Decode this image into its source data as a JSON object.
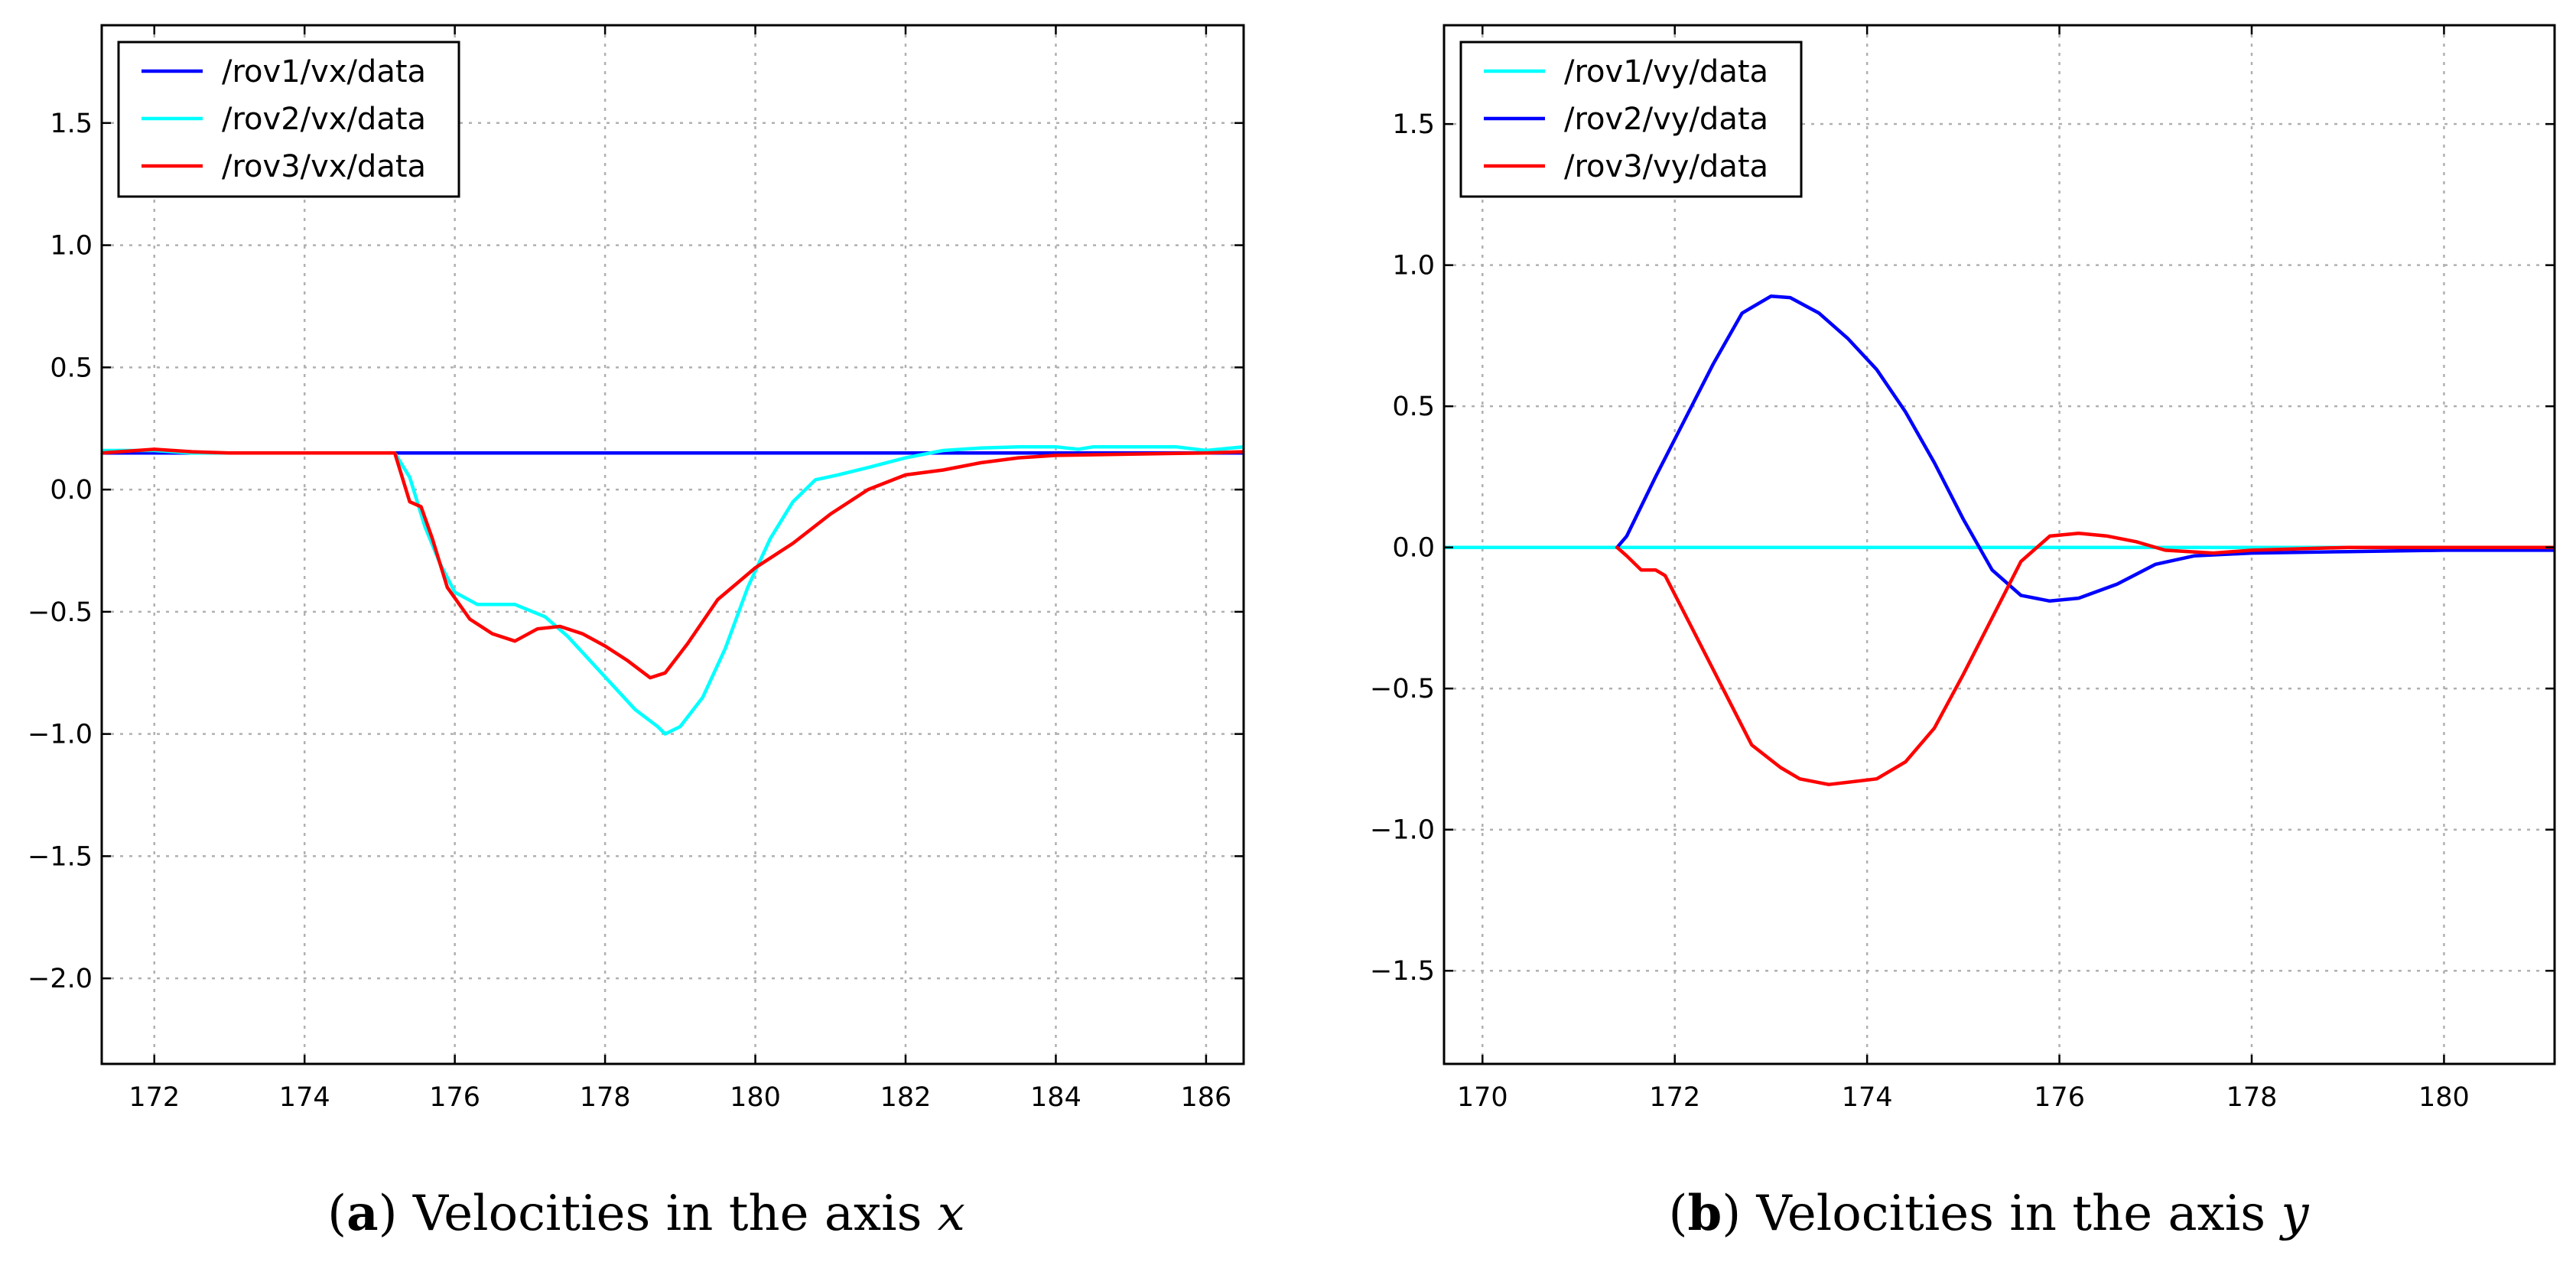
{
  "chart_data": [
    {
      "id": "a",
      "type": "line",
      "caption": {
        "letter": "a",
        "text": "Velocities in the axis",
        "variable": "x"
      },
      "xlim": [
        171.3,
        186.5
      ],
      "ylim": [
        -2.35,
        1.9
      ],
      "xticks": [
        172,
        174,
        176,
        178,
        180,
        182,
        184,
        186
      ],
      "yticks": [
        1.5,
        1.0,
        0.5,
        0.0,
        -0.5,
        -1.0,
        -1.5,
        -2.0
      ],
      "xtick_labels": [
        "172",
        "174",
        "176",
        "178",
        "180",
        "182",
        "184",
        "186"
      ],
      "ytick_labels": [
        "1.5",
        "1.0",
        "0.5",
        "0.0",
        "−0.5",
        "−1.0",
        "−1.5",
        "−2.0"
      ],
      "grid": true,
      "legend_position": "top-left",
      "series": [
        {
          "name": "/rov1/vx/data",
          "color": "#0000ff",
          "points": [
            [
              171.3,
              0.15
            ],
            [
              186.5,
              0.15
            ]
          ]
        },
        {
          "name": "/rov2/vx/data",
          "color": "#00ffff",
          "points": [
            [
              171.3,
              0.16
            ],
            [
              172,
              0.16
            ],
            [
              172.5,
              0.15
            ],
            [
              173,
              0.15
            ],
            [
              174,
              0.15
            ],
            [
              175.2,
              0.15
            ],
            [
              175.4,
              0.05
            ],
            [
              175.6,
              -0.15
            ],
            [
              175.8,
              -0.3
            ],
            [
              176,
              -0.42
            ],
            [
              176.3,
              -0.47
            ],
            [
              176.8,
              -0.47
            ],
            [
              177.2,
              -0.52
            ],
            [
              177.5,
              -0.6
            ],
            [
              177.8,
              -0.7
            ],
            [
              178.1,
              -0.8
            ],
            [
              178.4,
              -0.9
            ],
            [
              178.7,
              -0.97
            ],
            [
              178.8,
              -1.0
            ],
            [
              179.0,
              -0.97
            ],
            [
              179.3,
              -0.85
            ],
            [
              179.6,
              -0.65
            ],
            [
              179.9,
              -0.4
            ],
            [
              180.2,
              -0.2
            ],
            [
              180.5,
              -0.05
            ],
            [
              180.8,
              0.04
            ],
            [
              181.1,
              0.06
            ],
            [
              181.5,
              0.09
            ],
            [
              182.0,
              0.13
            ],
            [
              182.5,
              0.16
            ],
            [
              183.0,
              0.17
            ],
            [
              183.5,
              0.175
            ],
            [
              184.0,
              0.175
            ],
            [
              184.3,
              0.165
            ],
            [
              184.5,
              0.175
            ],
            [
              185.0,
              0.175
            ],
            [
              185.6,
              0.175
            ],
            [
              186.0,
              0.16
            ],
            [
              186.5,
              0.175
            ]
          ]
        },
        {
          "name": "/rov3/vx/data",
          "color": "#ff0000",
          "points": [
            [
              171.3,
              0.15
            ],
            [
              172.0,
              0.165
            ],
            [
              172.5,
              0.155
            ],
            [
              173,
              0.15
            ],
            [
              174,
              0.15
            ],
            [
              175.2,
              0.15
            ],
            [
              175.4,
              -0.05
            ],
            [
              175.55,
              -0.07
            ],
            [
              175.7,
              -0.2
            ],
            [
              175.9,
              -0.4
            ],
            [
              176.2,
              -0.53
            ],
            [
              176.5,
              -0.59
            ],
            [
              176.8,
              -0.62
            ],
            [
              177.1,
              -0.57
            ],
            [
              177.4,
              -0.56
            ],
            [
              177.7,
              -0.59
            ],
            [
              178.0,
              -0.64
            ],
            [
              178.3,
              -0.7
            ],
            [
              178.6,
              -0.77
            ],
            [
              178.8,
              -0.75
            ],
            [
              179.1,
              -0.63
            ],
            [
              179.5,
              -0.45
            ],
            [
              180.0,
              -0.32
            ],
            [
              180.5,
              -0.22
            ],
            [
              181.0,
              -0.1
            ],
            [
              181.5,
              0.0
            ],
            [
              182.0,
              0.06
            ],
            [
              182.5,
              0.08
            ],
            [
              183.0,
              0.11
            ],
            [
              183.5,
              0.13
            ],
            [
              184.0,
              0.14
            ],
            [
              185.0,
              0.145
            ],
            [
              186.0,
              0.15
            ],
            [
              186.5,
              0.155
            ]
          ]
        }
      ]
    },
    {
      "id": "b",
      "type": "line",
      "caption": {
        "letter": "b",
        "text": "Velocities in the axis",
        "variable": "y"
      },
      "xlim": [
        169.6,
        181.15
      ],
      "ylim": [
        -1.83,
        1.85
      ],
      "xticks": [
        170,
        172,
        174,
        176,
        178,
        180
      ],
      "yticks": [
        1.5,
        1.0,
        0.5,
        0.0,
        -0.5,
        -1.0,
        -1.5
      ],
      "xtick_labels": [
        "170",
        "172",
        "174",
        "176",
        "178",
        "180"
      ],
      "ytick_labels": [
        "1.5",
        "1.0",
        "0.5",
        "0.0",
        "−0.5",
        "−1.0",
        "−1.5"
      ],
      "grid": true,
      "legend_position": "top-left",
      "series": [
        {
          "name": "/rov1/vy/data",
          "color": "#00ffff",
          "points": [
            [
              169.6,
              0.0
            ],
            [
              181.15,
              0.0
            ]
          ]
        },
        {
          "name": "/rov2/vy/data",
          "color": "#0000ff",
          "points": [
            [
              171.4,
              0.0
            ],
            [
              171.5,
              0.04
            ],
            [
              171.8,
              0.25
            ],
            [
              172.1,
              0.45
            ],
            [
              172.4,
              0.65
            ],
            [
              172.7,
              0.83
            ],
            [
              173.0,
              0.89
            ],
            [
              173.2,
              0.885
            ],
            [
              173.5,
              0.83
            ],
            [
              173.8,
              0.74
            ],
            [
              174.1,
              0.63
            ],
            [
              174.4,
              0.48
            ],
            [
              174.7,
              0.3
            ],
            [
              175.0,
              0.1
            ],
            [
              175.3,
              -0.08
            ],
            [
              175.6,
              -0.17
            ],
            [
              175.9,
              -0.19
            ],
            [
              176.2,
              -0.18
            ],
            [
              176.6,
              -0.13
            ],
            [
              177.0,
              -0.06
            ],
            [
              177.4,
              -0.03
            ],
            [
              178.0,
              -0.02
            ],
            [
              179.0,
              -0.015
            ],
            [
              180.0,
              -0.01
            ],
            [
              181.15,
              -0.01
            ]
          ]
        },
        {
          "name": "/rov3/vy/data",
          "color": "#ff0000",
          "points": [
            [
              171.4,
              0.0
            ],
            [
              171.5,
              -0.03
            ],
            [
              171.65,
              -0.08
            ],
            [
              171.8,
              -0.08
            ],
            [
              171.9,
              -0.1
            ],
            [
              172.2,
              -0.3
            ],
            [
              172.5,
              -0.5
            ],
            [
              172.8,
              -0.7
            ],
            [
              173.1,
              -0.78
            ],
            [
              173.3,
              -0.82
            ],
            [
              173.6,
              -0.84
            ],
            [
              174.1,
              -0.82
            ],
            [
              174.4,
              -0.76
            ],
            [
              174.7,
              -0.64
            ],
            [
              175.0,
              -0.45
            ],
            [
              175.3,
              -0.25
            ],
            [
              175.6,
              -0.05
            ],
            [
              175.9,
              0.04
            ],
            [
              176.2,
              0.05
            ],
            [
              176.5,
              0.04
            ],
            [
              176.8,
              0.02
            ],
            [
              177.1,
              -0.01
            ],
            [
              177.6,
              -0.02
            ],
            [
              178.0,
              -0.01
            ],
            [
              179.0,
              0.0
            ],
            [
              180.0,
              0.0
            ],
            [
              181.15,
              0.0
            ]
          ]
        }
      ]
    }
  ]
}
